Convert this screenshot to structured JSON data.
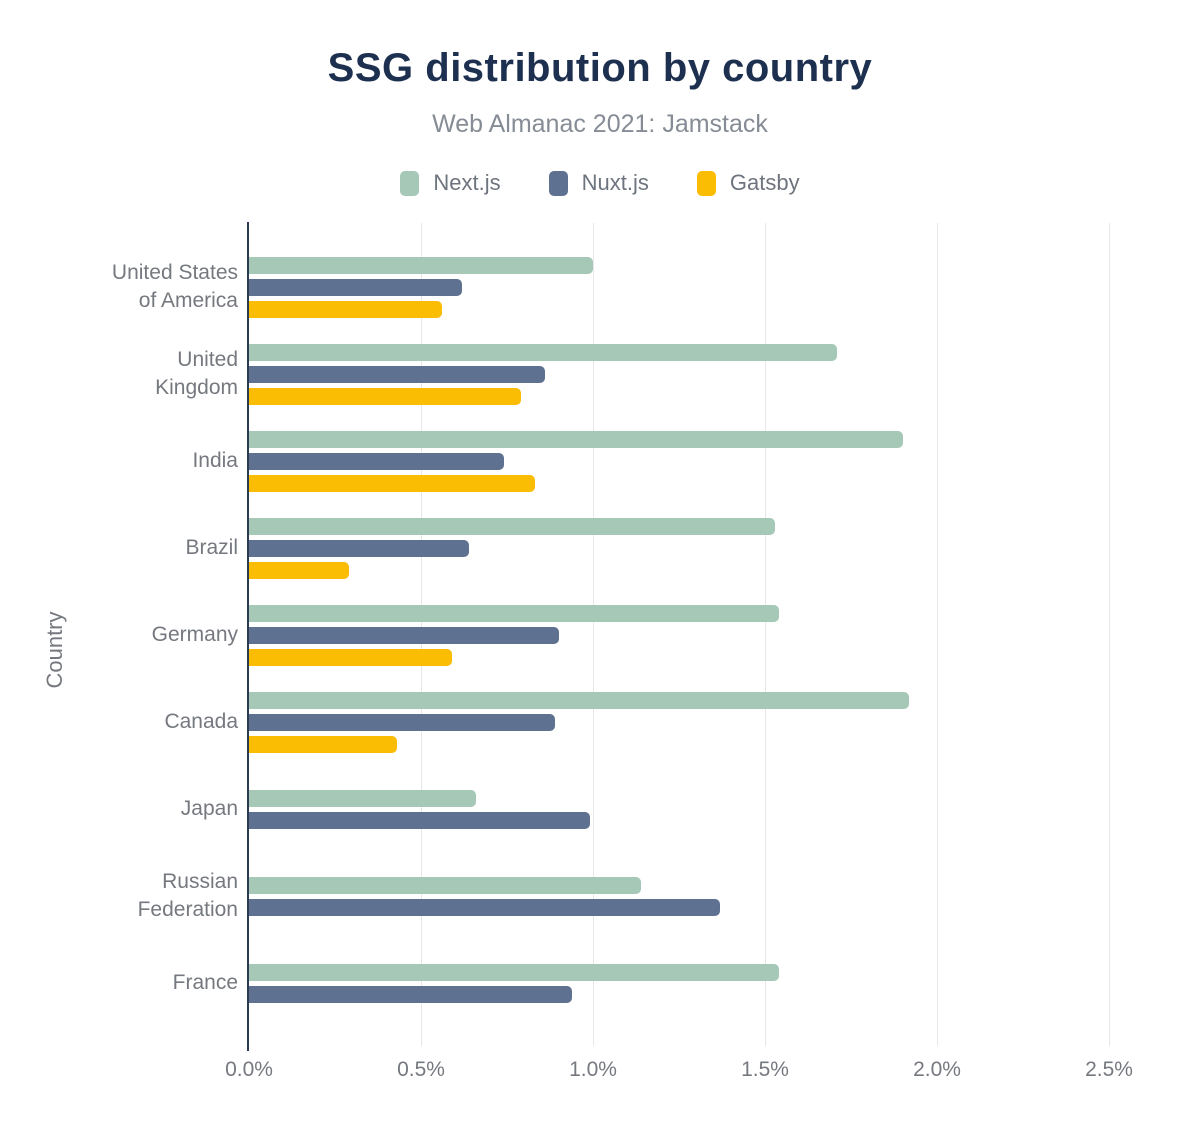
{
  "header": {
    "title": "SSG distribution by country",
    "subtitle": "Web Almanac 2021: Jamstack"
  },
  "colors": {
    "title_text": "#1e3050",
    "muted_text": "#75797f",
    "axis_line": "#2c3a52",
    "grid_line": "#e7e7e7",
    "background": "#ffffff"
  },
  "chart_data": {
    "type": "bar",
    "orientation": "horizontal",
    "title": "SSG distribution by country",
    "subtitle": "Web Almanac 2021: Jamstack",
    "xlabel": "",
    "ylabel": "Country",
    "x_unit": "%",
    "xlim": [
      0,
      2.5
    ],
    "x_ticks": [
      "0.0%",
      "0.5%",
      "1.0%",
      "1.5%",
      "2.0%",
      "2.5%"
    ],
    "x_tick_values": [
      0,
      0.5,
      1.0,
      1.5,
      2.0,
      2.5
    ],
    "grid": true,
    "legend_position": "top",
    "categories": [
      {
        "name": "United States of America",
        "lines": [
          "United States",
          "of America"
        ]
      },
      {
        "name": "United Kingdom",
        "lines": [
          "United",
          "Kingdom"
        ]
      },
      {
        "name": "India",
        "lines": [
          "India"
        ]
      },
      {
        "name": "Brazil",
        "lines": [
          "Brazil"
        ]
      },
      {
        "name": "Germany",
        "lines": [
          "Germany"
        ]
      },
      {
        "name": "Canada",
        "lines": [
          "Canada"
        ]
      },
      {
        "name": "Japan",
        "lines": [
          "Japan"
        ]
      },
      {
        "name": "Russian Federation",
        "lines": [
          "Russian",
          "Federation"
        ]
      },
      {
        "name": "France",
        "lines": [
          "France"
        ]
      }
    ],
    "series": [
      {
        "name": "Next.js",
        "color": "#a6c8b7",
        "values": [
          1.0,
          1.71,
          1.9,
          1.53,
          1.54,
          1.92,
          0.66,
          1.14,
          1.54
        ]
      },
      {
        "name": "Nuxt.js",
        "color": "#5f7190",
        "values": [
          0.62,
          0.86,
          0.74,
          0.64,
          0.9,
          0.89,
          0.99,
          1.37,
          0.94
        ]
      },
      {
        "name": "Gatsby",
        "color": "#fbbc04",
        "values": [
          0.56,
          0.79,
          0.83,
          0.29,
          0.59,
          0.43,
          null,
          null,
          null
        ]
      }
    ]
  }
}
